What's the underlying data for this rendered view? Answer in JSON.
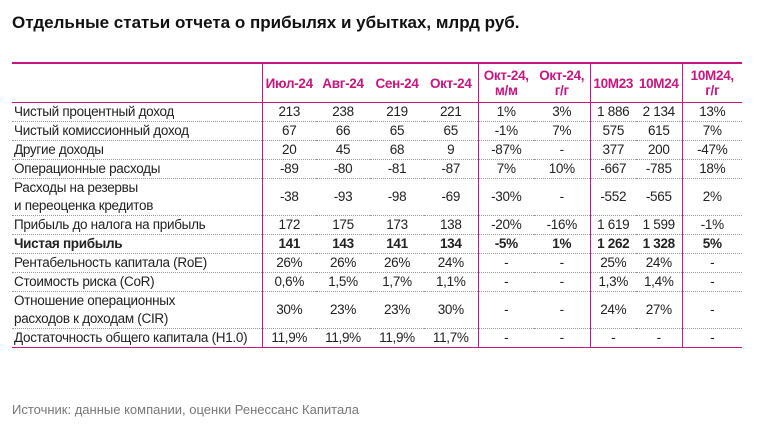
{
  "header": {
    "title": "Отдельные статьи отчета о прибылях и убытках, млрд руб."
  },
  "table": {
    "columns": [
      [
        "Июл-24"
      ],
      [
        "Авг-24"
      ],
      [
        "Сен-24"
      ],
      [
        "Окт-24"
      ],
      [
        "Окт-24,",
        "м/м"
      ],
      [
        "Окт-24,",
        "г/г"
      ],
      [
        "10M23"
      ],
      [
        "10M24"
      ],
      [
        "10M24,",
        "г/г"
      ]
    ],
    "rows": [
      {
        "label": [
          "Чистый процентный доход"
        ],
        "cells": [
          "213",
          "238",
          "219",
          "221",
          "1%",
          "3%",
          "1 886",
          "2 134",
          "13%"
        ]
      },
      {
        "label": [
          "Чистый комиссионный доход"
        ],
        "cells": [
          "67",
          "66",
          "65",
          "65",
          "-1%",
          "7%",
          "575",
          "615",
          "7%"
        ]
      },
      {
        "label": [
          "Другие доходы"
        ],
        "cells": [
          "20",
          "45",
          "68",
          "9",
          "-87%",
          "-",
          "377",
          "200",
          "-47%"
        ]
      },
      {
        "label": [
          "Операционные расходы"
        ],
        "cells": [
          "-89",
          "-80",
          "-81",
          "-87",
          "7%",
          "10%",
          "-667",
          "-785",
          "18%"
        ]
      },
      {
        "label": [
          "Расходы на резервы",
          "и переоценка кредитов"
        ],
        "cells": [
          "-38",
          "-93",
          "-98",
          "-69",
          "-30%",
          "-",
          "-552",
          "-565",
          "2%"
        ]
      },
      {
        "label": [
          "Прибыль до налога на прибыль"
        ],
        "cells": [
          "172",
          "175",
          "173",
          "138",
          "-20%",
          "-16%",
          "1 619",
          "1 599",
          "-1%"
        ]
      },
      {
        "label": [
          "Чистая прибыль"
        ],
        "cells": [
          "141",
          "143",
          "141",
          "134",
          "-5%",
          "1%",
          "1 262",
          "1 328",
          "5%"
        ],
        "bold": true
      },
      {
        "label": [
          "Рентабельность капитала (RoE)"
        ],
        "cells": [
          "26%",
          "26%",
          "26%",
          "24%",
          "-",
          "-",
          "25%",
          "24%",
          "-"
        ]
      },
      {
        "label": [
          "Стоимость риска (CoR)"
        ],
        "cells": [
          "0,6%",
          "1,5%",
          "1,7%",
          "1,1%",
          "-",
          "-",
          "1,3%",
          "1,4%",
          "-"
        ]
      },
      {
        "label": [
          "Отношение операционных",
          "расходов к доходам (CIR)"
        ],
        "cells": [
          "30%",
          "23%",
          "23%",
          "30%",
          "-",
          "-",
          "24%",
          "27%",
          "-"
        ]
      },
      {
        "label": [
          "Достаточность общего капитала (Н1.0)"
        ],
        "cells": [
          "11,9%",
          "11,9%",
          "11,9%",
          "11,7%",
          "-",
          "-",
          "-",
          "-",
          "-"
        ]
      }
    ]
  },
  "footer": {
    "source": "Источник: данные компании, оценки Ренессанс Капитала"
  }
}
